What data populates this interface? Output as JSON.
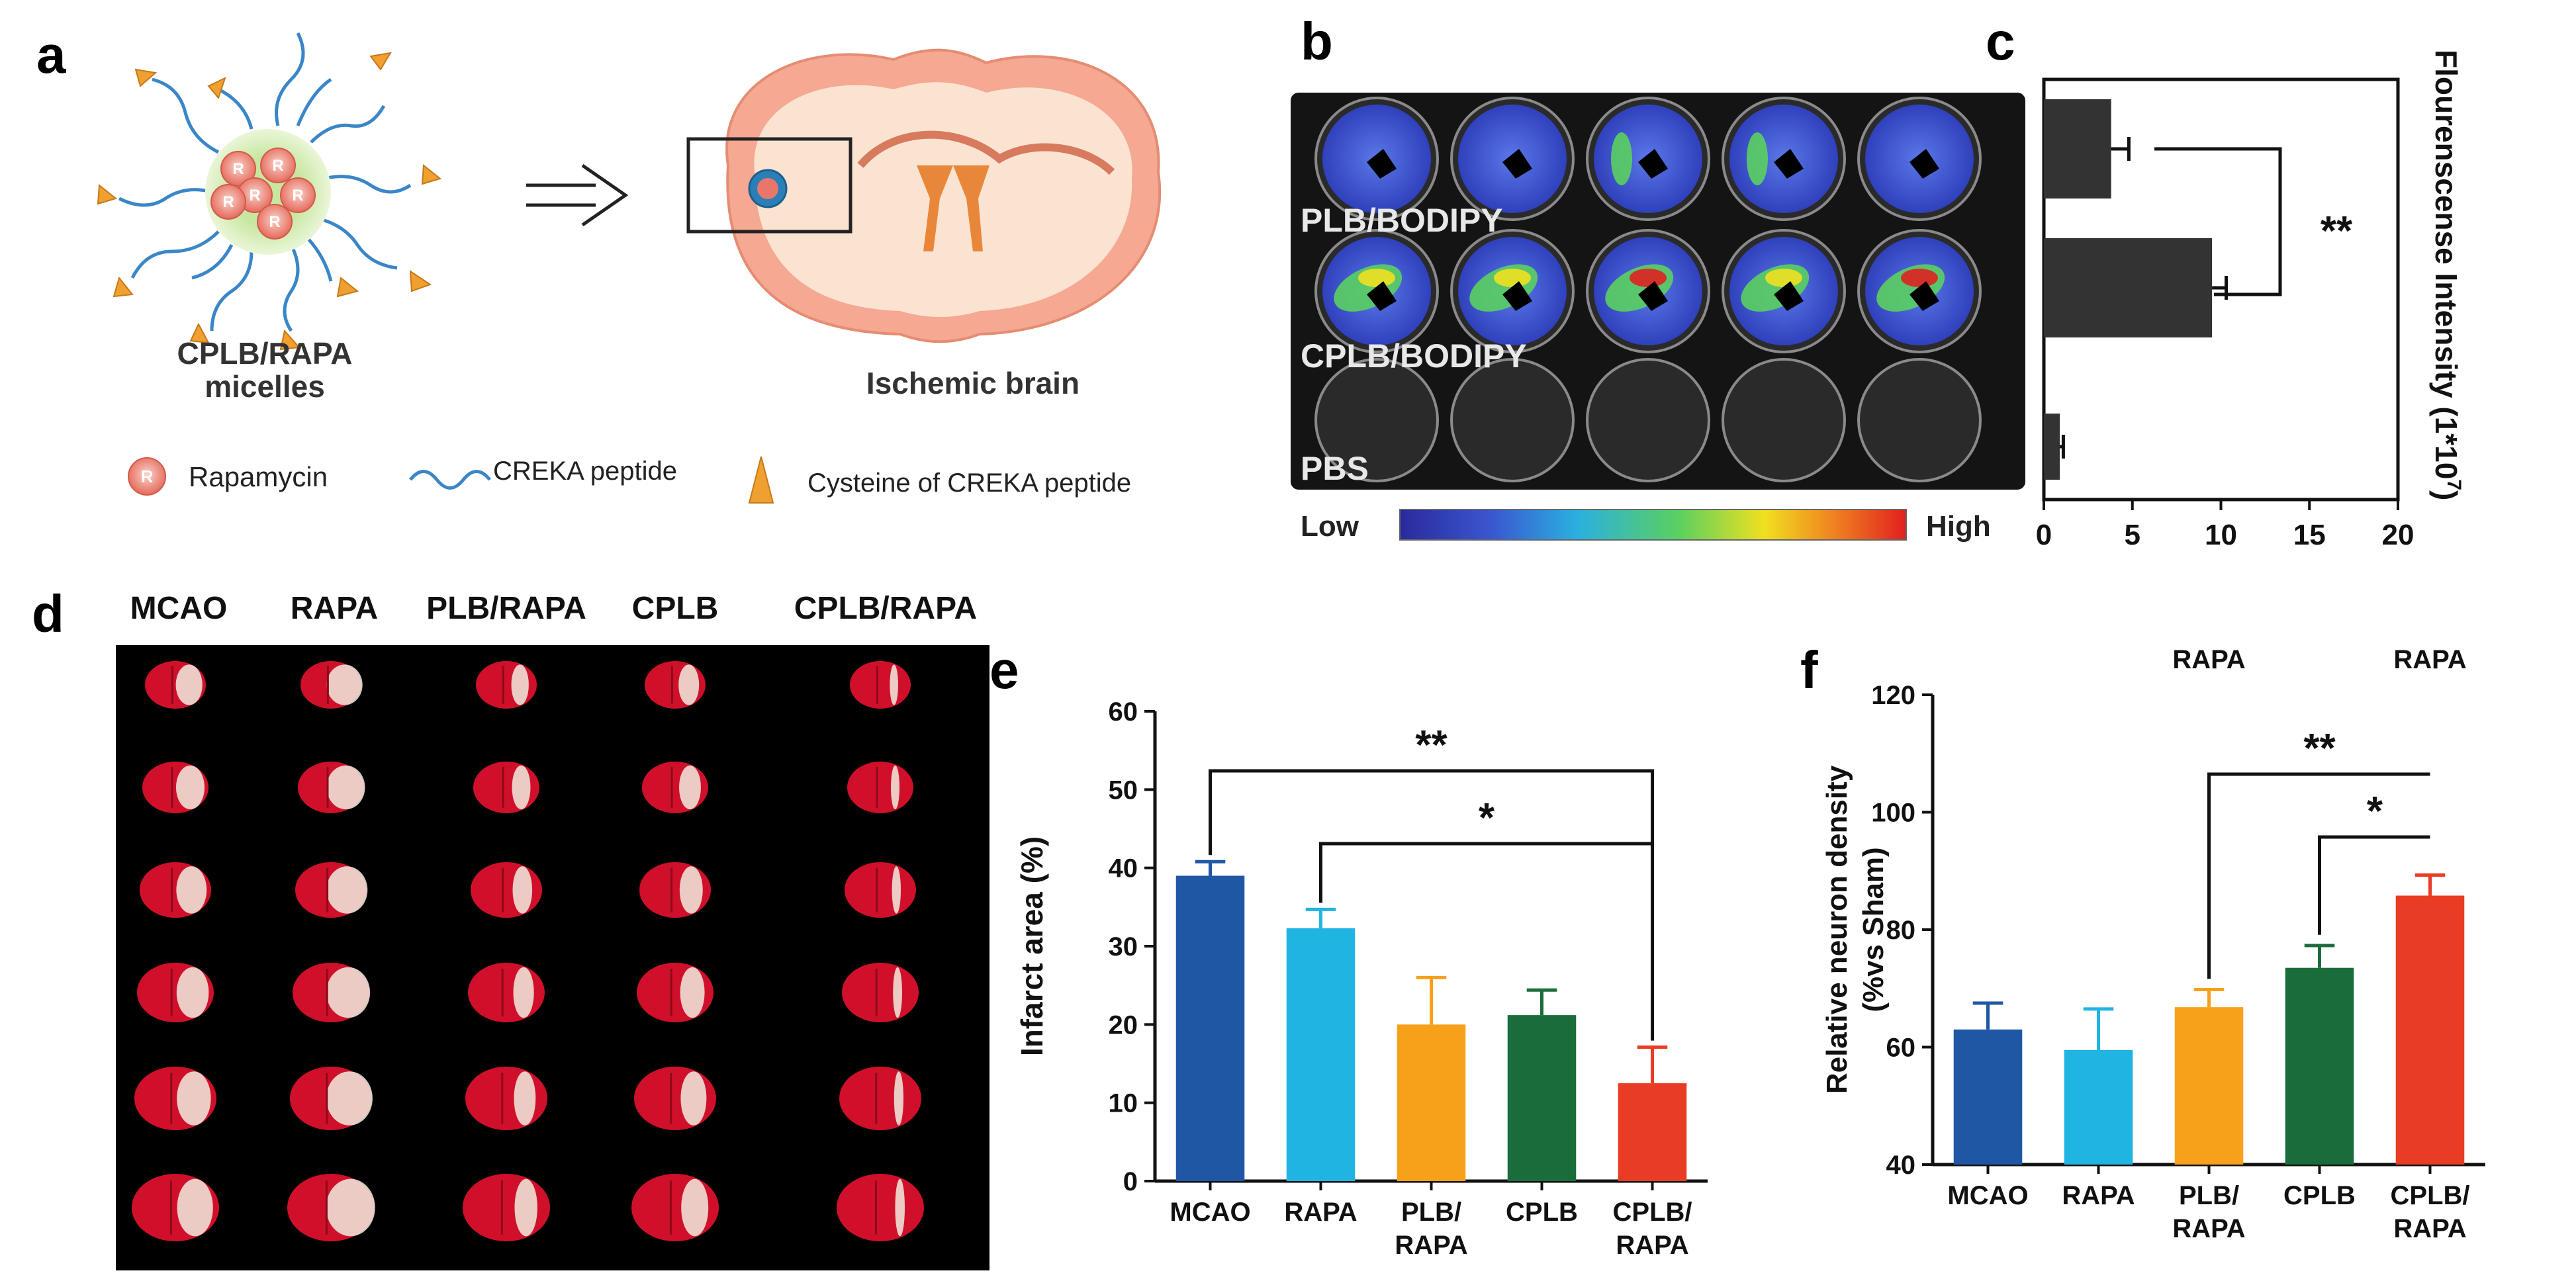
{
  "panel_letters": {
    "a": "a",
    "b": "b",
    "c": "c",
    "d": "d",
    "e": "e",
    "f": "f"
  },
  "schematic": {
    "micelle_label_line1": "CPLB/RAPA",
    "micelle_label_line2": "micelles",
    "brain_label": "Ischemic brain",
    "micelle_core_glyph": "R",
    "legend": [
      {
        "icon": "rapamycin-bead-icon",
        "glyph": "R",
        "text": "Rapamycin"
      },
      {
        "icon": "wavy-line-icon",
        "text": "CREKA peptide"
      },
      {
        "icon": "cone-arrow-icon",
        "text": "Cysteine of CREKA peptide"
      }
    ],
    "colors": {
      "peptide": "#3a86c8",
      "cysteine": "#f0a030",
      "core": "#e9766a",
      "brain_outer": "#f5a892",
      "brain_inner": "#fbe3d2",
      "ventricle": "#e8873a"
    }
  },
  "imaging": {
    "row_labels": [
      "PLB/BODIPY",
      "CPLB/BODIPY",
      "PBS"
    ],
    "colorbar_low": "Low",
    "colorbar_high": "High",
    "colorbar_colors": [
      "#2a2a9a",
      "#3a56d0",
      "#2ab0e0",
      "#5ad060",
      "#f0e020",
      "#f08020",
      "#e02020"
    ]
  },
  "photos": {
    "column_labels": [
      "MCAO",
      "RAPA",
      "PLB/RAPA",
      "CPLB",
      "CPLB/RAPA"
    ],
    "rows": 6,
    "colors": {
      "stain": "#d0102a",
      "infarct": "#f1ece0",
      "background": "#000000"
    }
  },
  "chart_data": [
    {
      "id": "c",
      "type": "bar",
      "orientation": "horizontal",
      "categories": [
        "PLB/BODIPY",
        "CPLB/BODIPY",
        "PBS"
      ],
      "values": [
        3.8,
        9.5,
        0.9
      ],
      "errors": [
        1.0,
        0.8,
        0.2
      ],
      "xlabel": "Flourenscense Intensity (1*10",
      "xlabel_sup": "7",
      "xlabel_close": ")",
      "xticks": [
        "0",
        "5",
        "10",
        "15",
        "20"
      ],
      "xlim": [
        0,
        20
      ],
      "significance": [
        {
          "label": "**",
          "pair": [
            0,
            1
          ]
        }
      ],
      "color": "#333333"
    },
    {
      "id": "e",
      "type": "bar",
      "categories": [
        "MCAO",
        "RAPA",
        "PLB/RAPA",
        "CPLB",
        "CPLB/RAPA"
      ],
      "tick_lines": [
        [
          "MCAO"
        ],
        [
          "RAPA"
        ],
        [
          "PLB/",
          "RAPA"
        ],
        [
          "CPLB"
        ],
        [
          "CPLB/",
          "RAPA"
        ]
      ],
      "values": [
        39,
        32.3,
        20,
        21.2,
        12.5
      ],
      "errors": [
        1.8,
        2.4,
        6,
        3.2,
        4.6
      ],
      "ylabel": "Infarct area (%)",
      "ylim": [
        0,
        60
      ],
      "yticks": [
        "0",
        "10",
        "20",
        "30",
        "40",
        "50",
        "60"
      ],
      "significance": [
        {
          "label": "**",
          "from": 0,
          "to": 4
        },
        {
          "label": "*",
          "from": 1,
          "to": 4
        }
      ],
      "colors": [
        "#1f57a4",
        "#20b4e2",
        "#f7a11a",
        "#1a6d3a",
        "#e93c24"
      ]
    },
    {
      "id": "f",
      "type": "bar",
      "categories": [
        "MCAO",
        "RAPA",
        "PLB/RAPA",
        "CPLB",
        "CPLB/RAPA"
      ],
      "tick_lines": [
        [
          "MCAO"
        ],
        [
          "RAPA"
        ],
        [
          "PLB/",
          "RAPA"
        ],
        [
          "CPLB"
        ],
        [
          "CPLB/",
          "RAPA"
        ]
      ],
      "top_labels": [
        "RAPA",
        "RAPA"
      ],
      "values": [
        63,
        59.5,
        66.8,
        73.5,
        85.8
      ],
      "errors": [
        4.5,
        7,
        3,
        3.8,
        3.5
      ],
      "ylabel_line1": "Relative neuron density",
      "ylabel_line2": "(%vs Sham)",
      "ylim": [
        40,
        120
      ],
      "yticks": [
        "40",
        "60",
        "80",
        "100",
        "120"
      ],
      "significance": [
        {
          "label": "**",
          "from": 2,
          "to": 4
        },
        {
          "label": "*",
          "from": 3,
          "to": 4
        }
      ],
      "colors": [
        "#1f57a4",
        "#20b4e2",
        "#f7a11a",
        "#1a6d3a",
        "#e93c24"
      ]
    }
  ]
}
